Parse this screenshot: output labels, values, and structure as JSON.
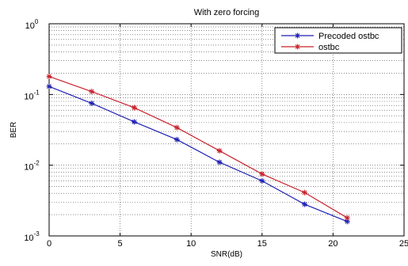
{
  "chart_data": {
    "type": "line",
    "title": "With zero forcing",
    "xlabel": "SNR(dB)",
    "ylabel": "BER",
    "xlim": [
      0,
      25
    ],
    "ylim": [
      0.001,
      1
    ],
    "yscale": "log",
    "grid": true,
    "legend_position": "top-right",
    "x_ticks": [
      "0",
      "5",
      "10",
      "15",
      "20",
      "25"
    ],
    "y_ticks": [
      {
        "base": "10",
        "exp": "0"
      },
      {
        "base": "10",
        "exp": "-1"
      },
      {
        "base": "10",
        "exp": "-2"
      },
      {
        "base": "10",
        "exp": "-3"
      }
    ],
    "series": [
      {
        "name": "Precoded ostbc",
        "color": "#1f1fb4",
        "marker": "asterisk",
        "x": [
          0,
          3,
          6,
          9,
          12,
          15,
          18,
          21
        ],
        "y": [
          0.13,
          0.075,
          0.041,
          0.023,
          0.011,
          0.006,
          0.0028,
          0.0016
        ]
      },
      {
        "name": "ostbc",
        "color": "#c8232c",
        "marker": "asterisk",
        "x": [
          0,
          3,
          6,
          9,
          12,
          15,
          18,
          21
        ],
        "y": [
          0.18,
          0.11,
          0.065,
          0.034,
          0.016,
          0.0075,
          0.0041,
          0.0018
        ]
      }
    ]
  }
}
